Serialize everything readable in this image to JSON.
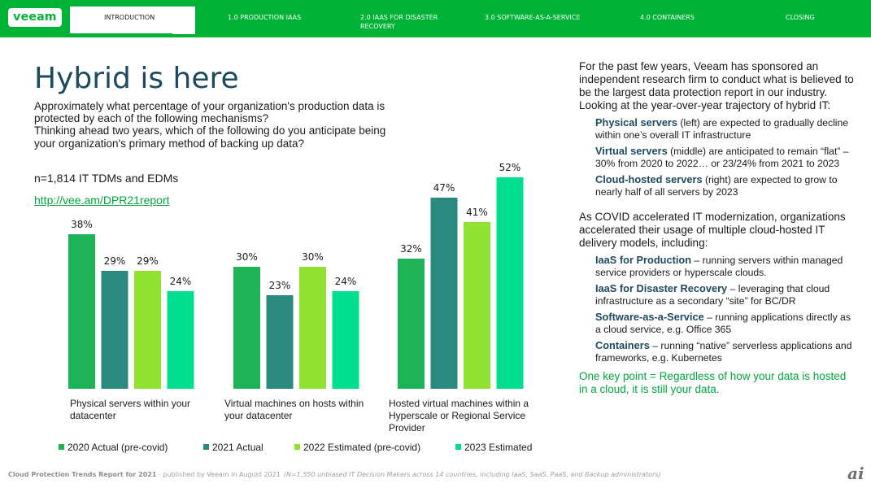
{
  "nav": {
    "logo": "veeam",
    "tabs": [
      {
        "label": "INTRODUCTION",
        "active": true
      },
      {
        "label": "1.0 PRODUCTION IAAS",
        "active": false
      },
      {
        "label": "2.0 IAAS FOR DISASTER RECOVERY",
        "line1": "2.0 IAAS FOR DISASTER",
        "line2": "RECOVERY",
        "active": false
      },
      {
        "label": "3.0 SOFTWARE-AS-A-SERVICE",
        "active": false
      },
      {
        "label": "4.0 CONTAINERS",
        "active": false
      },
      {
        "label": "CLOSING",
        "active": false
      }
    ]
  },
  "slide": {
    "title": "Hybrid is here",
    "question_1": "Approximately what percentage of your organization's production data is protected by each of the following mechanisms?",
    "question_2": "Thinking ahead two years, which of the following do you anticipate being your organization's primary method of backing up data?",
    "sample": "n=1,814 IT TDMs and EDMs",
    "link": "http://vee.am/DPR21report"
  },
  "colors": {
    "brand": "#00b336",
    "series": [
      "#1db356",
      "#2a8a7f",
      "#8fe22f",
      "#00df8f"
    ],
    "title": "#1e4a5e",
    "link": "#00a63e"
  },
  "chart_data": {
    "type": "bar",
    "categories": [
      "Physical servers within your datacenter",
      "Virtual machines on hosts within your datacenter",
      "Hosted virtual machines within a Hyperscale or Regional Service Provider"
    ],
    "category_lines": [
      [
        "Physical servers within your",
        "datacenter"
      ],
      [
        "Virtual machines on hosts within",
        "your datacenter"
      ],
      [
        "Hosted virtual machines within a",
        "Hyperscale or Regional Service",
        "Provider"
      ]
    ],
    "series": [
      {
        "name": "2020 Actual (pre-covid)",
        "values": [
          38,
          30,
          32
        ]
      },
      {
        "name": "2021 Actual",
        "values": [
          29,
          23,
          47
        ]
      },
      {
        "name": "2022 Estimated (pre-covid)",
        "values": [
          29,
          30,
          41
        ]
      },
      {
        "name": "2023 Estimated",
        "values": [
          24,
          24,
          52
        ]
      }
    ],
    "value_suffix": "%",
    "ylim": [
      0,
      55
    ],
    "grid": false,
    "legend_position": "bottom"
  },
  "right": {
    "intro": "For the past few years, Veeam has sponsored an independent research firm to conduct what is believed to be the largest data protection report in our industry. Looking at the year-over-year trajectory of hybrid IT:",
    "points": [
      {
        "bold": "Physical servers",
        "text": " (left) are expected to gradually decline within one’s overall IT infrastructure"
      },
      {
        "bold": "Virtual servers",
        "text": " (middle) are anticipated to remain “flat” – 30% from 2020 to 2022… or 23/24% from 2021 to 2023"
      },
      {
        "bold": "Cloud-hosted servers",
        "text": " (right) are expected to grow to nearly half of all servers by 2023"
      }
    ],
    "covid": "As COVID accelerated IT modernization, organizations accelerated their usage of multiple cloud-hosted IT delivery models, including:",
    "models": [
      {
        "bold": "IaaS for Production",
        "text": " – running servers within managed service providers or hyperscale clouds."
      },
      {
        "bold": "IaaS for Disaster Recovery",
        "text": " – leveraging that cloud infrastructure as a secondary “site” for BC/DR"
      },
      {
        "bold": "Software-as-a-Service",
        "text": " – running applications directly as a cloud service, e.g. Office 365"
      },
      {
        "bold": "Containers",
        "text": " – running “native” serverless applications and frameworks, e.g. Kubernetes"
      }
    ],
    "keypoint": "One key point = Regardless of how your data is hosted in a cloud, it is still your data."
  },
  "footer": {
    "report": "Cloud Protection Trends Report for 2021",
    "published": " - published by Veeam in August 2021",
    "note": "(N=1,550 unbiased IT Decision Makers across 14 countries, including IaaS, SaaS, PaaS, and Backup administrators)",
    "watermark": "ai"
  }
}
